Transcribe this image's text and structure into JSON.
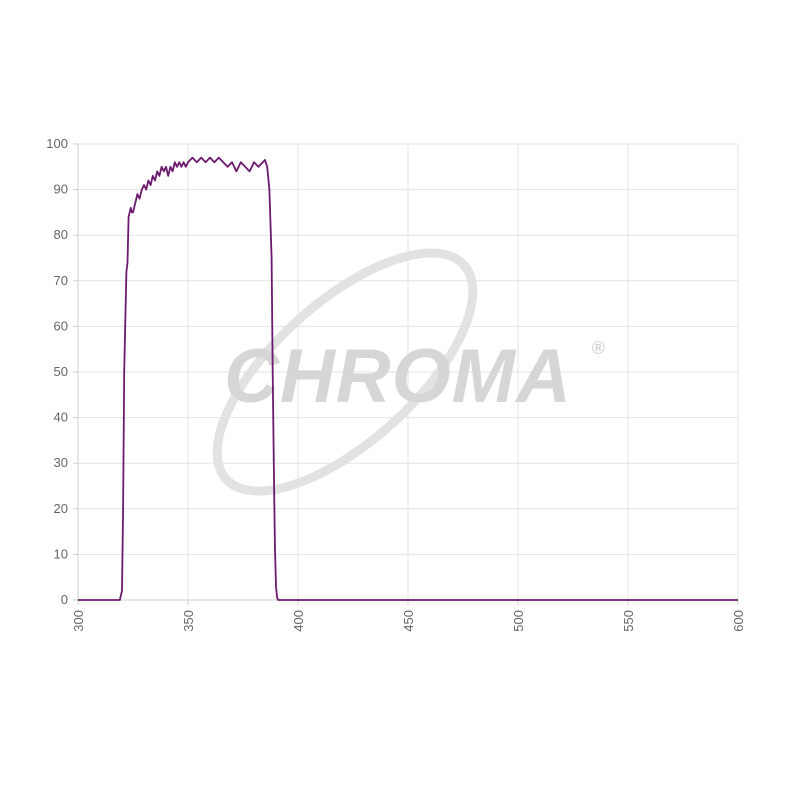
{
  "watermark": {
    "text": "CHROMA",
    "mark": "®",
    "color": "#d6d6d6"
  },
  "chart_data": {
    "type": "line",
    "title": "",
    "xlabel": "",
    "ylabel": "",
    "xlim": [
      300,
      600
    ],
    "ylim": [
      0,
      100
    ],
    "x_ticks": [
      300,
      350,
      400,
      450,
      500,
      550,
      600
    ],
    "y_ticks": [
      0,
      10,
      20,
      30,
      40,
      50,
      60,
      70,
      80,
      90,
      100
    ],
    "grid": true,
    "legend": "none",
    "series": [
      {
        "color": "#6b1a6e",
        "x": [
          300,
          319,
          320,
          320.5,
          321,
          322,
          322.5,
          323,
          324,
          324.5,
          325,
          326,
          327,
          328,
          329,
          330,
          331,
          332,
          333,
          334,
          335,
          336,
          337,
          338,
          339,
          340,
          341,
          342,
          343,
          344,
          345,
          346,
          347,
          348,
          349,
          350,
          352,
          354,
          356,
          358,
          360,
          362,
          364,
          366,
          368,
          370,
          372,
          374,
          376,
          378,
          380,
          382,
          384,
          385,
          386,
          387,
          388,
          388.5,
          389,
          389.5,
          390,
          390.5,
          391,
          400,
          450,
          500,
          550,
          600
        ],
        "y": [
          0,
          0,
          2,
          20,
          50,
          72,
          74,
          84,
          86,
          85,
          85,
          87,
          89,
          88,
          90,
          91,
          90,
          92,
          91,
          93,
          92,
          94,
          93,
          95,
          94,
          95,
          93,
          95,
          94,
          96,
          95,
          96,
          95,
          96,
          95,
          96,
          97,
          96,
          97,
          96,
          97,
          96,
          97,
          96,
          95,
          96,
          94,
          96,
          95,
          94,
          96,
          95,
          96,
          96.5,
          95,
          90,
          75,
          50,
          30,
          12,
          3,
          0.5,
          0,
          0,
          0,
          0,
          0,
          0
        ]
      }
    ]
  }
}
